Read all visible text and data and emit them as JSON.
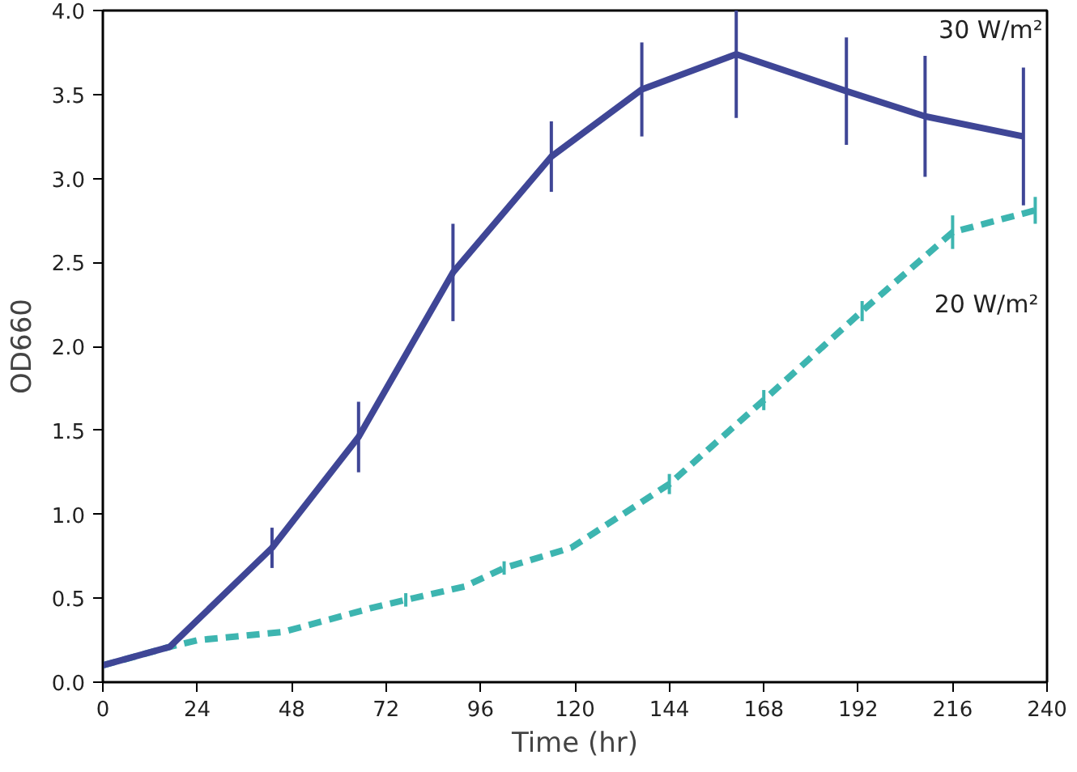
{
  "chart_data": {
    "type": "line",
    "xlabel": "Time (hr)",
    "ylabel": "OD660",
    "xlim": [
      0,
      240
    ],
    "xticks": [
      0,
      24,
      48,
      72,
      96,
      120,
      144,
      168,
      192,
      216,
      240
    ],
    "ylim": [
      0,
      4.0
    ],
    "yticks": [
      {
        "value": 0,
        "label": "0.0"
      },
      0.5,
      {
        "value": 1,
        "label": "1.0"
      },
      1.5,
      {
        "value": 2,
        "label": "2.0"
      },
      2.5,
      {
        "value": 3,
        "label": "3.0"
      },
      3.5,
      {
        "value": 4,
        "label": "4.0"
      }
    ],
    "grid": false,
    "marker": "none",
    "series": [
      {
        "name": "30 W/m²",
        "color": "#3f4696",
        "line_style": "solid",
        "x": [
          0,
          17,
          43,
          65,
          89,
          114,
          137,
          161,
          189,
          209,
          234
        ],
        "values": [
          0.1,
          0.21,
          0.8,
          1.46,
          2.44,
          3.13,
          3.53,
          3.74,
          3.52,
          3.37,
          3.25
        ],
        "errors": [
          null,
          null,
          0.12,
          0.21,
          0.29,
          0.21,
          0.28,
          0.38,
          0.32,
          0.36,
          0.41
        ]
      },
      {
        "name": "20 W/m²",
        "color": "#3db5b0",
        "line_style": "dashed",
        "x": [
          0,
          17,
          24,
          46,
          68,
          77,
          92,
          102,
          119,
          144,
          168,
          193,
          216,
          237
        ],
        "values": [
          0.1,
          0.21,
          0.25,
          0.3,
          0.44,
          0.49,
          0.57,
          0.68,
          0.8,
          1.18,
          1.68,
          2.21,
          2.68,
          2.81
        ],
        "errors": [
          null,
          null,
          null,
          null,
          null,
          0.04,
          null,
          0.04,
          null,
          0.06,
          0.06,
          0.06,
          0.1,
          0.08
        ]
      }
    ]
  }
}
